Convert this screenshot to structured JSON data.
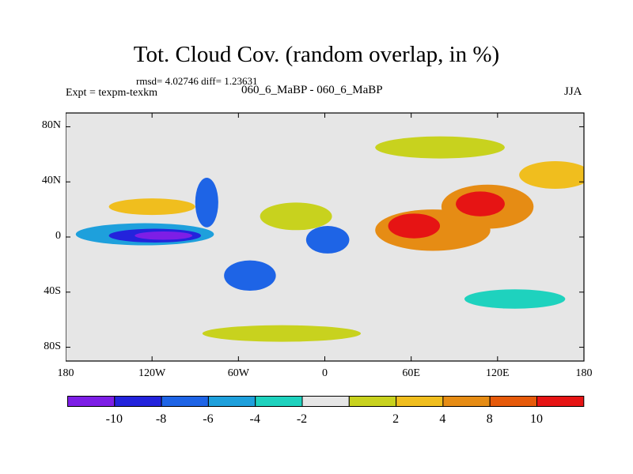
{
  "header": {
    "title": "Tot. Cloud Cov. (random overlap, in %)",
    "stats": "rmsd= 4.02746 diff= 1.23631",
    "experiment": "Expt = texpm-texkm",
    "runs": "060_6_MaBP - 060_6_MaBP",
    "season": "JJA"
  },
  "axes": {
    "lat_ticks": [
      {
        "value": 80,
        "label": "80N"
      },
      {
        "value": 40,
        "label": "40N"
      },
      {
        "value": 0,
        "label": "0"
      },
      {
        "value": -40,
        "label": "40S"
      },
      {
        "value": -80,
        "label": "80S"
      }
    ],
    "lon_ticks": [
      {
        "value": -180,
        "label": "180"
      },
      {
        "value": -120,
        "label": "120W"
      },
      {
        "value": -60,
        "label": "60W"
      },
      {
        "value": 0,
        "label": "0"
      },
      {
        "value": 60,
        "label": "60E"
      },
      {
        "value": 120,
        "label": "120E"
      },
      {
        "value": 180,
        "label": "180"
      }
    ],
    "lon_range": [
      -180,
      180
    ],
    "lat_range": [
      -90,
      90
    ]
  },
  "legend": {
    "colors": [
      "#7d1ee6",
      "#2323dc",
      "#1e64e6",
      "#1ea0dc",
      "#1ed2be",
      "#e6e6e6",
      "#c8d21e",
      "#f0be1e",
      "#e68c14",
      "#e65a0a",
      "#e61414"
    ],
    "labels": [
      "-10",
      "-8",
      "-6",
      "-4",
      "-2",
      "2",
      "4",
      "8",
      "10"
    ]
  },
  "map": {
    "background_color": "#e6e6e6",
    "anomalies": [
      {
        "lon": 75,
        "lat": 5,
        "rx": 40,
        "ry": 15,
        "color": "#e68c14"
      },
      {
        "lon": 62,
        "lat": 8,
        "rx": 18,
        "ry": 9,
        "color": "#e61414"
      },
      {
        "lon": 113,
        "lat": 22,
        "rx": 32,
        "ry": 16,
        "color": "#e68c14"
      },
      {
        "lon": 108,
        "lat": 24,
        "rx": 17,
        "ry": 9,
        "color": "#e61414"
      },
      {
        "lon": -125,
        "lat": 2,
        "rx": 48,
        "ry": 8,
        "color": "#1ea0dc"
      },
      {
        "lon": -118,
        "lat": 1,
        "rx": 32,
        "ry": 5,
        "color": "#2323dc"
      },
      {
        "lon": -112,
        "lat": 1,
        "rx": 20,
        "ry": 3,
        "color": "#7d1ee6"
      },
      {
        "lon": -82,
        "lat": 25,
        "rx": 8,
        "ry": 18,
        "color": "#1e64e6"
      },
      {
        "lon": -52,
        "lat": -28,
        "rx": 18,
        "ry": 11,
        "color": "#1e64e6"
      },
      {
        "lon": 2,
        "lat": -2,
        "rx": 15,
        "ry": 10,
        "color": "#1e64e6"
      },
      {
        "lon": 132,
        "lat": -45,
        "rx": 35,
        "ry": 7,
        "color": "#1ed2be"
      },
      {
        "lon": -20,
        "lat": 15,
        "rx": 25,
        "ry": 10,
        "color": "#c8d21e"
      },
      {
        "lon": 160,
        "lat": 45,
        "rx": 25,
        "ry": 10,
        "color": "#f0be1e"
      },
      {
        "lon": -120,
        "lat": 22,
        "rx": 30,
        "ry": 6,
        "color": "#f0be1e"
      },
      {
        "lon": 80,
        "lat": 65,
        "rx": 45,
        "ry": 8,
        "color": "#c8d21e"
      },
      {
        "lon": -30,
        "lat": -70,
        "rx": 55,
        "ry": 6,
        "color": "#c8d21e"
      }
    ]
  }
}
